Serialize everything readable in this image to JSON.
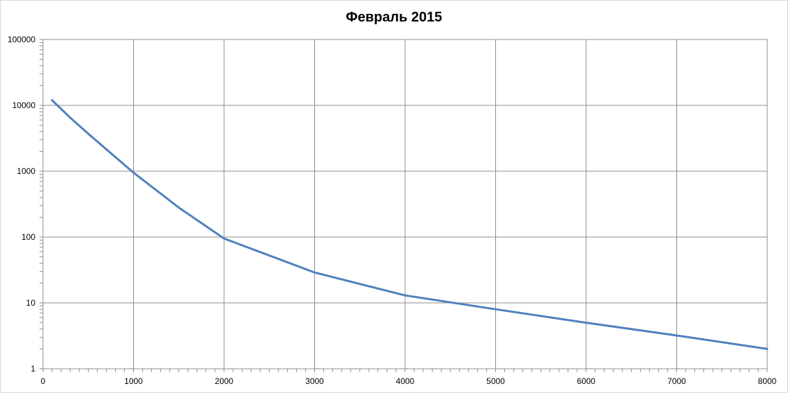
{
  "chart_data": {
    "type": "line",
    "title": "Февраль 2015",
    "xlabel": "",
    "ylabel": "",
    "xlim": [
      0,
      8000
    ],
    "ylim": [
      1,
      100000
    ],
    "y_scale": "log",
    "grid": true,
    "legend": "none",
    "x_ticks": [
      "0",
      "1000",
      "2000",
      "3000",
      "4000",
      "5000",
      "6000",
      "7000",
      "8000"
    ],
    "y_ticks": [
      "1",
      "10",
      "100",
      "1000",
      "10000",
      "100000"
    ],
    "series": [
      {
        "color": "#4f81bd",
        "x": [
          100,
          300,
          500,
          1000,
          1500,
          2000,
          3000,
          4000,
          5000,
          6000,
          7000,
          8000
        ],
        "y": [
          12000,
          6500,
          3700,
          950,
          280,
          95,
          29,
          13,
          8,
          5,
          3.2,
          2
        ]
      }
    ]
  }
}
